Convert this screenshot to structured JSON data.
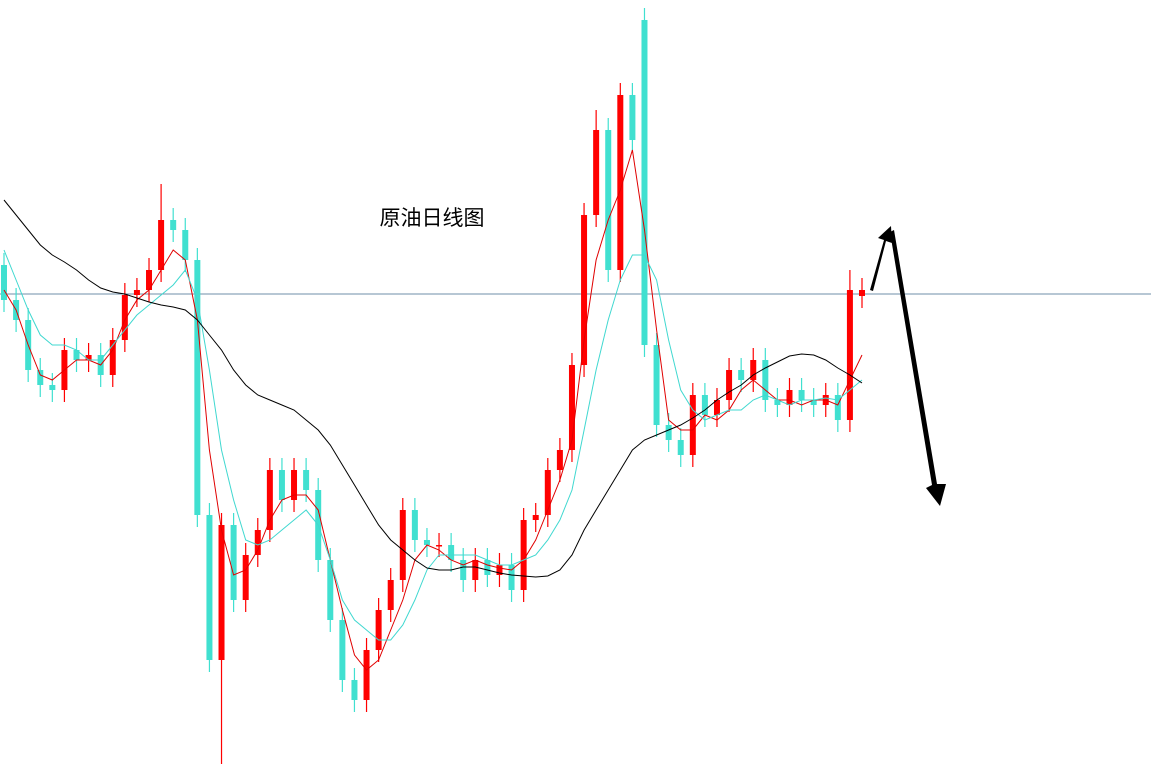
{
  "chart_data": {
    "type": "candlestick",
    "title": "原油日线图",
    "ylim": [
      0,
      774
    ],
    "up_color": "#ff0000",
    "down_color": "#40e0d0",
    "reference_line": {
      "value": 480,
      "color": "#6f8fa8"
    },
    "open": [
      509,
      474,
      454,
      404,
      389,
      384,
      424,
      414,
      419,
      399,
      434,
      479,
      484,
      504,
      554,
      544,
      514,
      259,
      114,
      249,
      174,
      219,
      244,
      304,
      274,
      304,
      284,
      214,
      154,
      94,
      74,
      124,
      164,
      194,
      264,
      234,
      229,
      229,
      214,
      194,
      214,
      199,
      209,
      184,
      254,
      259,
      304,
      324,
      409,
      559,
      644,
      504,
      679,
      754,
      429,
      349,
      334,
      319,
      379,
      359,
      374,
      404,
      394,
      414,
      374,
      369,
      384,
      374,
      369,
      379,
      354,
      478
    ],
    "high": [
      521,
      486,
      466,
      416,
      401,
      436,
      436,
      431,
      431,
      446,
      491,
      496,
      516,
      590,
      566,
      556,
      526,
      271,
      261,
      261,
      231,
      256,
      316,
      316,
      316,
      316,
      296,
      226,
      166,
      106,
      136,
      176,
      206,
      276,
      276,
      246,
      241,
      241,
      226,
      226,
      226,
      221,
      221,
      266,
      271,
      316,
      336,
      421,
      571,
      664,
      656,
      691,
      691,
      766,
      441,
      361,
      346,
      391,
      391,
      386,
      416,
      416,
      426,
      426,
      386,
      396,
      396,
      386,
      391,
      391,
      504,
      496
    ],
    "low": [
      462,
      442,
      392,
      377,
      372,
      372,
      402,
      402,
      387,
      387,
      422,
      467,
      472,
      492,
      532,
      502,
      247,
      102,
      10,
      162,
      162,
      207,
      232,
      262,
      262,
      272,
      202,
      142,
      82,
      62,
      62,
      112,
      152,
      182,
      222,
      217,
      217,
      202,
      182,
      182,
      187,
      187,
      172,
      172,
      242,
      247,
      292,
      312,
      397,
      547,
      492,
      492,
      622,
      417,
      337,
      322,
      307,
      307,
      347,
      347,
      362,
      382,
      382,
      362,
      357,
      357,
      362,
      357,
      357,
      342,
      342,
      466
    ],
    "close": [
      474,
      454,
      404,
      389,
      384,
      424,
      414,
      419,
      399,
      434,
      479,
      484,
      504,
      554,
      544,
      514,
      259,
      114,
      249,
      174,
      219,
      244,
      304,
      274,
      304,
      284,
      214,
      154,
      94,
      74,
      124,
      164,
      194,
      264,
      234,
      229,
      229,
      214,
      194,
      214,
      199,
      209,
      184,
      254,
      259,
      304,
      324,
      409,
      559,
      644,
      504,
      679,
      634,
      429,
      349,
      334,
      319,
      379,
      359,
      374,
      404,
      394,
      414,
      374,
      369,
      384,
      374,
      369,
      379,
      354,
      484,
      484
    ],
    "lines": [
      {
        "color": "#e00000",
        "values": [
          484,
          464,
          429,
          399,
          394,
          404,
          414,
          414,
          409,
          424,
          454,
          474,
          484,
          504,
          524,
          514,
          454,
          324,
          244,
          199,
          204,
          224,
          254,
          274,
          279,
          279,
          264,
          214,
          164,
          119,
          104,
          114,
          144,
          174,
          214,
          229,
          224,
          214,
          209,
          214,
          209,
          206,
          204,
          214,
          234,
          264,
          294,
          334,
          434,
          514,
          554,
          584,
          624,
          544,
          444,
          354,
          344,
          344,
          359,
          354,
          364,
          384,
          394,
          384,
          374,
          374,
          369,
          374,
          374,
          369,
          394,
          419
        ]
      },
      {
        "color": "#40d8d0",
        "values": [
          524,
          494,
          464,
          439,
          429,
          429,
          424,
          414,
          414,
          429,
          444,
          459,
          469,
          479,
          489,
          504,
          474,
          404,
          324,
          274,
          234,
          229,
          234,
          244,
          254,
          264,
          249,
          214,
          174,
          154,
          144,
          134,
          134,
          149,
          174,
          204,
          219,
          219,
          219,
          219,
          214,
          209,
          209,
          214,
          219,
          234,
          254,
          284,
          344,
          404,
          454,
          494,
          519,
          519,
          494,
          434,
          384,
          364,
          354,
          359,
          364,
          364,
          374,
          379,
          374,
          369,
          374,
          374,
          376,
          374,
          384,
          394
        ]
      },
      {
        "color": "#000000",
        "values": [
          574,
          559,
          544,
          529,
          519,
          512,
          504,
          494,
          486,
          482,
          480,
          476,
          472,
          469,
          467,
          464,
          454,
          439,
          424,
          404,
          389,
          379,
          374,
          369,
          364,
          354,
          344,
          329,
          309,
          289,
          269,
          249,
          234,
          224,
          214,
          206,
          204,
          204,
          207,
          207,
          204,
          201,
          199,
          198,
          197,
          198,
          204,
          219,
          244,
          264,
          284,
          304,
          324,
          334,
          339,
          344,
          349,
          356,
          364,
          374,
          382,
          389,
          399,
          406,
          412,
          418,
          420,
          419,
          414,
          406,
          399,
          391
        ]
      }
    ]
  }
}
